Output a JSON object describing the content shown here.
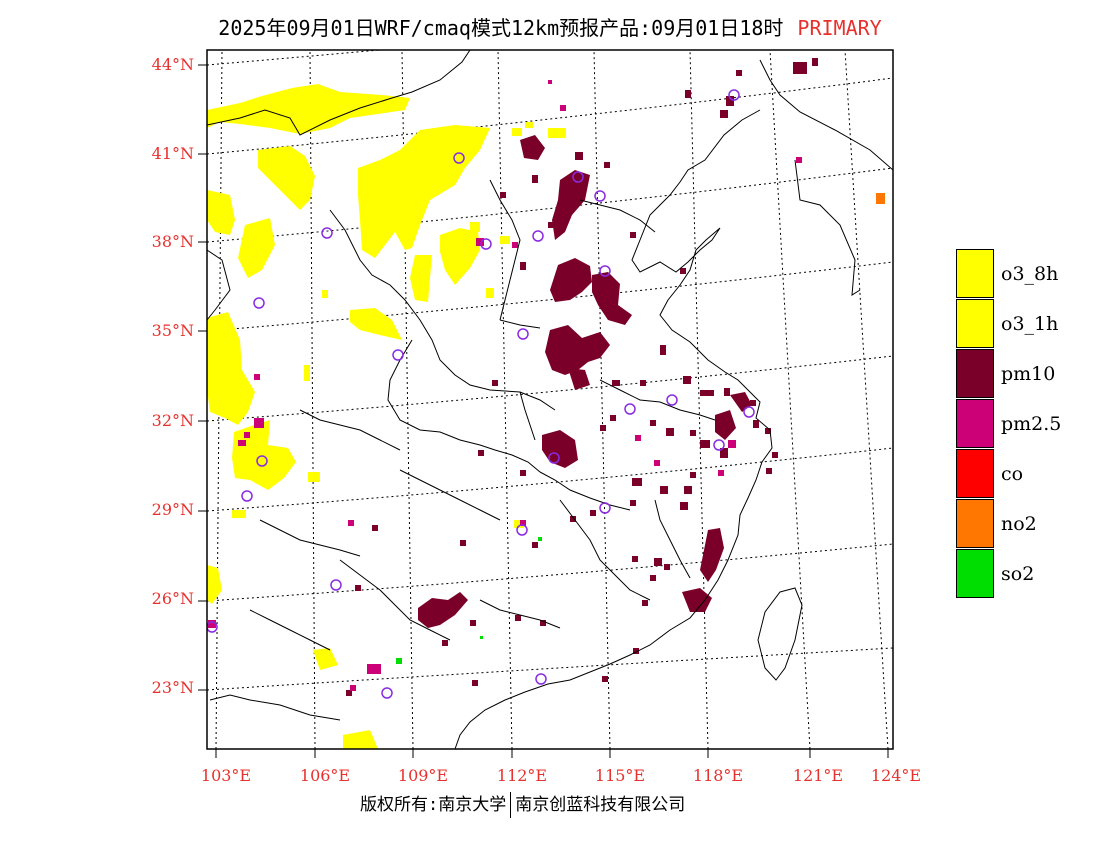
{
  "title": {
    "main": "2025年09月01日WRF/cmaq模式12km预报产品:09月01日18时",
    "tag": "PRIMARY",
    "tag_color": "#e8312e"
  },
  "axes": {
    "label_color": "#e8312e",
    "latitudes": [
      "23°N",
      "26°N",
      "29°N",
      "32°N",
      "35°N",
      "38°N",
      "41°N",
      "44°N"
    ],
    "longitudes": [
      "103°E",
      "106°E",
      "109°E",
      "112°E",
      "115°E",
      "118°E",
      "121°E",
      "124°E"
    ]
  },
  "legend": [
    {
      "label": "o3_8h",
      "color": "#ffff00"
    },
    {
      "label": "o3_1h",
      "color": "#ffff00"
    },
    {
      "label": "pm10",
      "color": "#7a0029"
    },
    {
      "label": "pm2.5",
      "color": "#cc0077"
    },
    {
      "label": "co",
      "color": "#ff0000"
    },
    {
      "label": "no2",
      "color": "#ff7700"
    },
    {
      "label": "so2",
      "color": "#00dd00"
    }
  ],
  "station_color": "#8a2be2",
  "footer": {
    "left": "版权所有:南京大学",
    "right": "南京创蓝科技有限公司"
  }
}
